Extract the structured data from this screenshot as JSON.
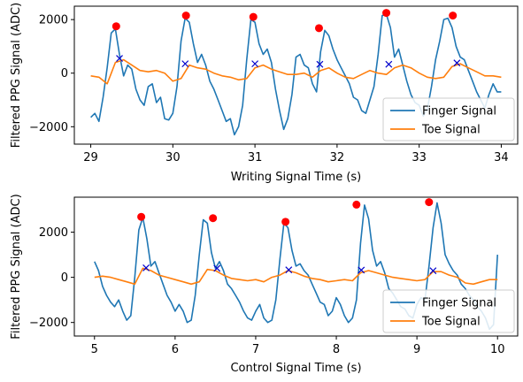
{
  "chart_data": [
    {
      "type": "line",
      "xlabel": "Writing Signal Time (s)",
      "ylabel": "Filtered PPG Signal (ADC)",
      "xlim": [
        28.8,
        34.2
      ],
      "ylim": [
        -2650,
        2500
      ],
      "xticks": [
        29,
        30,
        31,
        32,
        33,
        34
      ],
      "xtick_labels": [
        "29",
        "30",
        "31",
        "32",
        "33",
        "34"
      ],
      "yticks": [
        -2000,
        0,
        2000
      ],
      "ytick_labels": [
        "−2000",
        "0",
        "2000"
      ],
      "legend_position": "lower-right",
      "grid": false,
      "series": [
        {
          "name": "Finger Signal",
          "color": "#1f77b4",
          "x": [
            29.0,
            29.05,
            29.1,
            29.15,
            29.2,
            29.25,
            29.3,
            29.35,
            29.4,
            29.45,
            29.5,
            29.55,
            29.6,
            29.65,
            29.7,
            29.75,
            29.8,
            29.85,
            29.9,
            29.95,
            30.0,
            30.05,
            30.1,
            30.15,
            30.2,
            30.25,
            30.3,
            30.35,
            30.4,
            30.45,
            30.5,
            30.55,
            30.6,
            30.65,
            30.7,
            30.75,
            30.8,
            30.85,
            30.9,
            30.95,
            31.0,
            31.05,
            31.1,
            31.15,
            31.2,
            31.25,
            31.3,
            31.35,
            31.4,
            31.45,
            31.5,
            31.55,
            31.6,
            31.65,
            31.7,
            31.75,
            31.8,
            31.85,
            31.9,
            31.95,
            32.0,
            32.05,
            32.1,
            32.15,
            32.2,
            32.25,
            32.3,
            32.35,
            32.4,
            32.45,
            32.5,
            32.55,
            32.6,
            32.65,
            32.7,
            32.75,
            32.8,
            32.85,
            32.9,
            32.95,
            33.0,
            33.05,
            33.1,
            33.15,
            33.2,
            33.25,
            33.3,
            33.35,
            33.4,
            33.45,
            33.5,
            33.55,
            33.6,
            33.65,
            33.7,
            33.75,
            33.8,
            33.85,
            33.9,
            33.95,
            34.0
          ],
          "y": [
            -1650,
            -1500,
            -1800,
            -900,
            200,
            1500,
            1650,
            700,
            -100,
            300,
            150,
            -600,
            -1000,
            -1200,
            -500,
            -400,
            -1100,
            -900,
            -1700,
            -1750,
            -1500,
            -500,
            1200,
            2050,
            1900,
            1100,
            400,
            700,
            300,
            -300,
            -600,
            -1000,
            -1400,
            -1800,
            -1700,
            -2300,
            -2000,
            -1200,
            500,
            2000,
            1900,
            1100,
            700,
            900,
            400,
            -600,
            -1400,
            -2100,
            -1700,
            -800,
            600,
            700,
            300,
            200,
            -400,
            -700,
            800,
            1600,
            1400,
            900,
            500,
            200,
            -100,
            -400,
            -900,
            -1000,
            -1400,
            -1500,
            -1000,
            -500,
            700,
            2150,
            2200,
            1700,
            600,
            900,
            300,
            -300,
            -800,
            -1100,
            -1200,
            -1600,
            -1350,
            -500,
            500,
            1200,
            2000,
            2050,
            1700,
            1000,
            600,
            500,
            100,
            -300,
            -700,
            -1000,
            -1300,
            -800,
            -400,
            -700,
            -700
          ]
        },
        {
          "name": "Toe Signal",
          "color": "#ff7f0e",
          "x": [
            29.0,
            29.1,
            29.2,
            29.3,
            29.4,
            29.5,
            29.6,
            29.7,
            29.8,
            29.9,
            30.0,
            30.1,
            30.2,
            30.3,
            30.4,
            30.5,
            30.6,
            30.7,
            30.8,
            30.9,
            31.0,
            31.1,
            31.2,
            31.3,
            31.4,
            31.5,
            31.6,
            31.7,
            31.8,
            31.9,
            32.0,
            32.1,
            32.2,
            32.3,
            32.4,
            32.5,
            32.6,
            32.7,
            32.8,
            32.9,
            33.0,
            33.1,
            33.2,
            33.3,
            33.4,
            33.5,
            33.6,
            33.7,
            33.8,
            33.9,
            34.0
          ],
          "y": [
            -100,
            -150,
            -400,
            400,
            500,
            300,
            100,
            50,
            100,
            0,
            -300,
            -200,
            300,
            200,
            150,
            0,
            -100,
            -150,
            -250,
            -200,
            200,
            300,
            150,
            50,
            -50,
            -50,
            0,
            -150,
            100,
            200,
            0,
            -150,
            -200,
            -50,
            100,
            0,
            -50,
            200,
            300,
            200,
            0,
            -150,
            -200,
            -150,
            250,
            350,
            200,
            50,
            -100,
            -100,
            -150
          ]
        }
      ],
      "markers": [
        {
          "kind": "peak",
          "symbol": "circle",
          "color": "#ff0000",
          "x": [
            29.31,
            30.16,
            30.98,
            31.78,
            32.6,
            33.41
          ],
          "y": [
            1750,
            2150,
            2100,
            1680,
            2250,
            2150
          ]
        },
        {
          "kind": "onset",
          "symbol": "x",
          "color": "#0000cc",
          "x": [
            29.35,
            30.15,
            31.0,
            31.79,
            32.63,
            33.46
          ],
          "y": [
            550,
            350,
            350,
            330,
            330,
            380
          ]
        }
      ]
    },
    {
      "type": "line",
      "xlabel": "Control Signal Time (s)",
      "ylabel": "Filtered PPG Signal (ADC)",
      "xlim": [
        4.75,
        10.25
      ],
      "ylim": [
        -2600,
        3550
      ],
      "xticks": [
        5,
        6,
        7,
        8,
        9,
        10
      ],
      "xtick_labels": [
        "5",
        "6",
        "7",
        "8",
        "9",
        "10"
      ],
      "yticks": [
        -2000,
        0,
        2000
      ],
      "ytick_labels": [
        "−2000",
        "0",
        "2000"
      ],
      "legend_position": "lower-right",
      "grid": false,
      "series": [
        {
          "name": "Finger Signal",
          "color": "#1f77b4",
          "x": [
            5.0,
            5.05,
            5.1,
            5.15,
            5.2,
            5.25,
            5.3,
            5.35,
            5.4,
            5.45,
            5.5,
            5.55,
            5.6,
            5.65,
            5.7,
            5.75,
            5.8,
            5.85,
            5.9,
            5.95,
            6.0,
            6.05,
            6.1,
            6.15,
            6.2,
            6.25,
            6.3,
            6.35,
            6.4,
            6.45,
            6.5,
            6.55,
            6.6,
            6.65,
            6.7,
            6.75,
            6.8,
            6.85,
            6.9,
            6.95,
            7.0,
            7.05,
            7.1,
            7.15,
            7.2,
            7.25,
            7.3,
            7.35,
            7.4,
            7.45,
            7.5,
            7.55,
            7.6,
            7.65,
            7.7,
            7.75,
            7.8,
            7.85,
            7.9,
            7.95,
            8.0,
            8.05,
            8.1,
            8.15,
            8.2,
            8.25,
            8.3,
            8.35,
            8.4,
            8.45,
            8.5,
            8.55,
            8.6,
            8.65,
            8.7,
            8.75,
            8.8,
            8.85,
            8.9,
            8.95,
            9.0,
            9.05,
            9.1,
            9.15,
            9.2,
            9.25,
            9.3,
            9.35,
            9.4,
            9.45,
            9.5,
            9.55,
            9.6,
            9.65,
            9.7,
            9.75,
            9.8,
            9.85,
            9.9,
            9.95,
            10.0
          ],
          "y": [
            700,
            300,
            -400,
            -800,
            -1100,
            -1300,
            -1000,
            -1500,
            -1900,
            -1700,
            0,
            2100,
            2650,
            1700,
            500,
            700,
            200,
            -300,
            -800,
            -1100,
            -1500,
            -1200,
            -1500,
            -2000,
            -1900,
            -800,
            1000,
            2550,
            2400,
            1100,
            400,
            700,
            300,
            -300,
            -500,
            -800,
            -1100,
            -1500,
            -1800,
            -1900,
            -1500,
            -1200,
            -1800,
            -2000,
            -1900,
            -1000,
            800,
            2400,
            2200,
            1200,
            500,
            600,
            300,
            100,
            -300,
            -700,
            -1100,
            -1200,
            -1700,
            -1500,
            -900,
            -1200,
            -1700,
            -2000,
            -1800,
            -1000,
            1500,
            3200,
            2600,
            1200,
            500,
            700,
            200,
            -500,
            -700,
            -1000,
            -1300,
            -1400,
            -1700,
            -1800,
            -1200,
            -900,
            -1000,
            500,
            2200,
            3300,
            2400,
            1000,
            600,
            300,
            100,
            -300,
            -500,
            -800,
            -1000,
            -1300,
            -1500,
            -1800,
            -2300,
            -2100,
            1000
          ]
        },
        {
          "name": "Toe Signal",
          "color": "#ff7f0e",
          "x": [
            5.0,
            5.1,
            5.2,
            5.3,
            5.4,
            5.5,
            5.6,
            5.7,
            5.8,
            5.9,
            6.0,
            6.1,
            6.2,
            6.3,
            6.4,
            6.5,
            6.6,
            6.7,
            6.8,
            6.9,
            7.0,
            7.1,
            7.2,
            7.3,
            7.4,
            7.5,
            7.6,
            7.7,
            7.8,
            7.9,
            8.0,
            8.1,
            8.2,
            8.3,
            8.4,
            8.5,
            8.6,
            8.7,
            8.8,
            8.9,
            9.0,
            9.1,
            9.2,
            9.3,
            9.4,
            9.5,
            9.6,
            9.7,
            9.8,
            9.9,
            10.0
          ],
          "y": [
            0,
            50,
            0,
            -100,
            -200,
            -300,
            400,
            300,
            100,
            0,
            -100,
            -200,
            -300,
            -200,
            350,
            300,
            100,
            -50,
            -100,
            -150,
            -100,
            -200,
            0,
            100,
            300,
            200,
            50,
            -50,
            -100,
            -200,
            -150,
            -100,
            -150,
            200,
            300,
            200,
            100,
            0,
            -50,
            -100,
            -150,
            -100,
            250,
            250,
            100,
            0,
            -250,
            -300,
            -200,
            -100,
            -100
          ]
        }
      ],
      "markers": [
        {
          "kind": "peak",
          "symbol": "circle",
          "color": "#ff0000",
          "x": [
            5.58,
            6.47,
            7.37,
            8.25,
            9.15
          ],
          "y": [
            2680,
            2620,
            2460,
            3220,
            3330
          ]
        },
        {
          "kind": "onset",
          "symbol": "x",
          "color": "#0000cc",
          "x": [
            5.64,
            6.52,
            7.41,
            8.31,
            9.2
          ],
          "y": [
            420,
            400,
            330,
            320,
            290
          ]
        }
      ]
    }
  ]
}
